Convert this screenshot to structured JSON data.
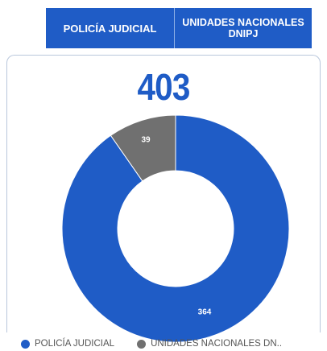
{
  "tabs": [
    {
      "label": "POLICÍA JUDICIAL"
    },
    {
      "label": "UNIDADES NACIONALES DNIPJ"
    }
  ],
  "total": "403",
  "chart_data": {
    "type": "pie",
    "categories": [
      "POLICÍA JUDICIAL",
      "UNIDADES NACIONALES DNIPJ"
    ],
    "values": [
      364,
      39
    ],
    "data_labels": [
      "364",
      "39"
    ],
    "colors": [
      "#1f5cc6",
      "#707070"
    ],
    "legend": [
      "POLICÍA JUDICIAL",
      "UNIDADES NACIONALES DN.."
    ],
    "legend_placement": "bottom-left",
    "donut": true,
    "total": 403
  }
}
